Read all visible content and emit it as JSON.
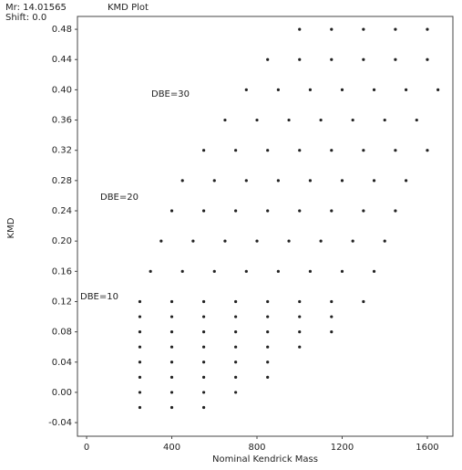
{
  "header": {
    "mr": "Mr: 14.01565",
    "shift": "Shift: 0.0"
  },
  "chart_data": {
    "type": "scatter",
    "title": "KMD Plot",
    "x_label": "Nominal Kendrick Mass",
    "y_label": "KMD",
    "annotations": [
      "DBE=30",
      "DBE=20",
      "DBE=10"
    ],
    "color": "#222222",
    "xlim": [
      -43,
      1720
    ],
    "ylim": [
      -0.058,
      0.497
    ],
    "xticks": [
      0,
      400,
      800,
      1200,
      1600
    ],
    "yticks": [
      -0.04,
      {
        "value": 0,
        "label": "0.00"
      },
      0.04,
      0.08,
      0.12,
      0.16,
      {
        "value": 0.2,
        "label": "0.20"
      },
      0.24,
      0.28,
      0.32,
      0.36,
      {
        "value": 0.4,
        "label": "0.40"
      },
      0.44,
      0.48
    ],
    "grid": false,
    "x": [
      250,
      400,
      550,
      250,
      400,
      550,
      700,
      250,
      400,
      550,
      700,
      850,
      250,
      400,
      550,
      700,
      850,
      250,
      400,
      550,
      700,
      850,
      1000,
      250,
      400,
      550,
      700,
      850,
      1000,
      1150,
      250,
      400,
      550,
      700,
      850,
      1000,
      1150,
      250,
      400,
      550,
      700,
      850,
      1000,
      1150,
      1300,
      300,
      450,
      600,
      750,
      900,
      1050,
      1200,
      1350,
      350,
      500,
      650,
      800,
      950,
      1100,
      1250,
      1400,
      400,
      550,
      700,
      850,
      1000,
      1150,
      1300,
      1450,
      450,
      600,
      750,
      900,
      1050,
      1200,
      1350,
      1500,
      550,
      700,
      850,
      1000,
      1150,
      1300,
      1450,
      1600,
      650,
      800,
      950,
      1100,
      1250,
      1400,
      1550,
      750,
      900,
      1050,
      1200,
      1350,
      1500,
      1650,
      850,
      1000,
      1150,
      1300,
      1450,
      1600,
      1000,
      1150,
      1300,
      1450,
      1600
    ],
    "values": [
      -0.02,
      -0.02,
      -0.02,
      0,
      0,
      0,
      0,
      0.02,
      0.02,
      0.02,
      0.02,
      0.02,
      0.04,
      0.04,
      0.04,
      0.04,
      0.04,
      0.06,
      0.06,
      0.06,
      0.06,
      0.06,
      0.06,
      0.08,
      0.08,
      0.08,
      0.08,
      0.08,
      0.08,
      0.08,
      0.1,
      0.1,
      0.1,
      0.1,
      0.1,
      0.1,
      0.1,
      0.12,
      0.12,
      0.12,
      0.12,
      0.12,
      0.12,
      0.12,
      0.12,
      0.16,
      0.16,
      0.16,
      0.16,
      0.16,
      0.16,
      0.16,
      0.16,
      0.2,
      0.2,
      0.2,
      0.2,
      0.2,
      0.2,
      0.2,
      0.2,
      0.24,
      0.24,
      0.24,
      0.24,
      0.24,
      0.24,
      0.24,
      0.24,
      0.28,
      0.28,
      0.28,
      0.28,
      0.28,
      0.28,
      0.28,
      0.28,
      0.32,
      0.32,
      0.32,
      0.32,
      0.32,
      0.32,
      0.32,
      0.32,
      0.36,
      0.36,
      0.36,
      0.36,
      0.36,
      0.36,
      0.36,
      0.4,
      0.4,
      0.4,
      0.4,
      0.4,
      0.4,
      0.4,
      0.44,
      0.44,
      0.44,
      0.44,
      0.44,
      0.44,
      0.48,
      0.48,
      0.48,
      0.48,
      0.48
    ]
  }
}
